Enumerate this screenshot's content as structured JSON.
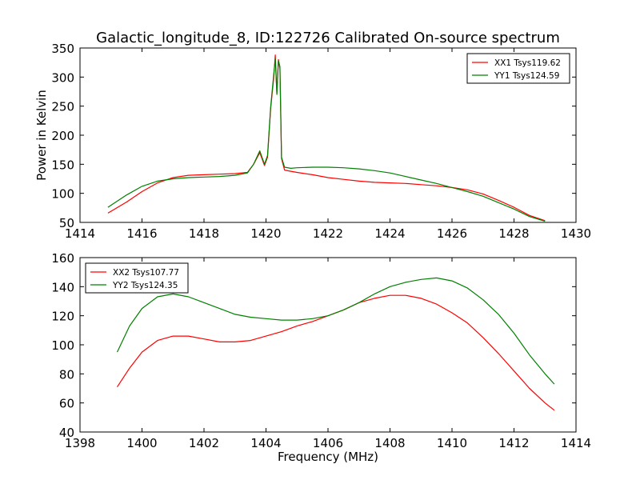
{
  "figure": {
    "title": "Galactic_longitude_8, ID:122726 Calibrated On-source spectrum"
  },
  "chart_data": [
    {
      "type": "line",
      "title": "Galactic_longitude_8, ID:122726 Calibrated On-source spectrum",
      "xlabel": "",
      "ylabel": "Power in Kelvin",
      "xlim": [
        1414,
        1430
      ],
      "ylim": [
        50,
        350
      ],
      "xticks": [
        "1414",
        "1416",
        "1418",
        "1420",
        "1422",
        "1424",
        "1426",
        "1428",
        "1430"
      ],
      "yticks": [
        "50",
        "100",
        "150",
        "200",
        "250",
        "300",
        "350"
      ],
      "legend_position": "top-right",
      "series": [
        {
          "name": "XX1 Tsys119.62",
          "color": "#ff0000",
          "x": [
            1414.9,
            1415.5,
            1416.0,
            1416.5,
            1417.0,
            1417.5,
            1418.0,
            1418.5,
            1419.0,
            1419.4,
            1419.6,
            1419.8,
            1419.95,
            1420.05,
            1420.15,
            1420.25,
            1420.3,
            1420.35,
            1420.4,
            1420.45,
            1420.5,
            1420.6,
            1420.8,
            1421.0,
            1421.5,
            1422.0,
            1422.5,
            1423.0,
            1423.5,
            1424.0,
            1424.5,
            1425.0,
            1425.5,
            1426.0,
            1426.5,
            1427.0,
            1427.5,
            1428.0,
            1428.5,
            1429.0
          ],
          "y": [
            66,
            85,
            103,
            118,
            127,
            131,
            132,
            133,
            134,
            136,
            150,
            170,
            148,
            162,
            245,
            300,
            338,
            272,
            330,
            315,
            160,
            140,
            138,
            136,
            132,
            127,
            124,
            121,
            119,
            118,
            117,
            115,
            113,
            110,
            106,
            99,
            88,
            76,
            62,
            53
          ]
        },
        {
          "name": "YY1 Tsys124.59",
          "color": "#008000",
          "x": [
            1414.9,
            1415.5,
            1416.0,
            1416.5,
            1417.0,
            1417.5,
            1418.0,
            1418.5,
            1419.0,
            1419.4,
            1419.6,
            1419.8,
            1419.95,
            1420.05,
            1420.15,
            1420.25,
            1420.3,
            1420.35,
            1420.4,
            1420.45,
            1420.5,
            1420.6,
            1420.8,
            1421.0,
            1421.5,
            1422.0,
            1422.5,
            1423.0,
            1423.5,
            1424.0,
            1424.5,
            1425.0,
            1425.5,
            1426.0,
            1426.5,
            1427.0,
            1427.5,
            1428.0,
            1428.5,
            1429.0
          ],
          "y": [
            76,
            97,
            112,
            121,
            125,
            127,
            128,
            129,
            131,
            135,
            150,
            173,
            150,
            165,
            248,
            305,
            332,
            270,
            328,
            318,
            162,
            145,
            143,
            144,
            145,
            145,
            144,
            142,
            139,
            135,
            129,
            123,
            117,
            110,
            103,
            95,
            84,
            73,
            60,
            52
          ]
        }
      ]
    },
    {
      "type": "line",
      "title": "",
      "xlabel": "Frequency (MHz)",
      "ylabel": "",
      "xlim": [
        1398,
        1414
      ],
      "ylim": [
        40,
        160
      ],
      "xticks": [
        "1398",
        "1400",
        "1402",
        "1404",
        "1406",
        "1408",
        "1410",
        "1412",
        "1414"
      ],
      "yticks": [
        "40",
        "60",
        "80",
        "100",
        "120",
        "140",
        "160"
      ],
      "legend_position": "top-left",
      "series": [
        {
          "name": "XX2 Tsys107.77",
          "color": "#ff0000",
          "x": [
            1399.2,
            1399.6,
            1400.0,
            1400.5,
            1401.0,
            1401.5,
            1402.0,
            1402.5,
            1403.0,
            1403.5,
            1404.0,
            1404.5,
            1405.0,
            1405.5,
            1406.0,
            1406.5,
            1407.0,
            1407.5,
            1408.0,
            1408.5,
            1409.0,
            1409.5,
            1410.0,
            1410.5,
            1411.0,
            1411.5,
            1412.0,
            1412.5,
            1413.0,
            1413.3
          ],
          "y": [
            71,
            84,
            95,
            103,
            106,
            106,
            104,
            102,
            102,
            103,
            106,
            109,
            113,
            116,
            120,
            124,
            129,
            132,
            134,
            134,
            132,
            128,
            122,
            115,
            105,
            94,
            82,
            70,
            60,
            55
          ]
        },
        {
          "name": "YY2 Tsys124.35",
          "color": "#008000",
          "x": [
            1399.2,
            1399.6,
            1400.0,
            1400.5,
            1401.0,
            1401.5,
            1402.0,
            1402.5,
            1403.0,
            1403.5,
            1404.0,
            1404.5,
            1405.0,
            1405.5,
            1406.0,
            1406.5,
            1407.0,
            1407.5,
            1408.0,
            1408.5,
            1409.0,
            1409.5,
            1410.0,
            1410.5,
            1411.0,
            1411.5,
            1412.0,
            1412.5,
            1413.0,
            1413.3
          ],
          "y": [
            95,
            113,
            125,
            133,
            135,
            133,
            129,
            125,
            121,
            119,
            118,
            117,
            117,
            118,
            120,
            124,
            129,
            135,
            140,
            143,
            145,
            146,
            144,
            139,
            131,
            121,
            108,
            93,
            80,
            73
          ]
        }
      ]
    }
  ]
}
